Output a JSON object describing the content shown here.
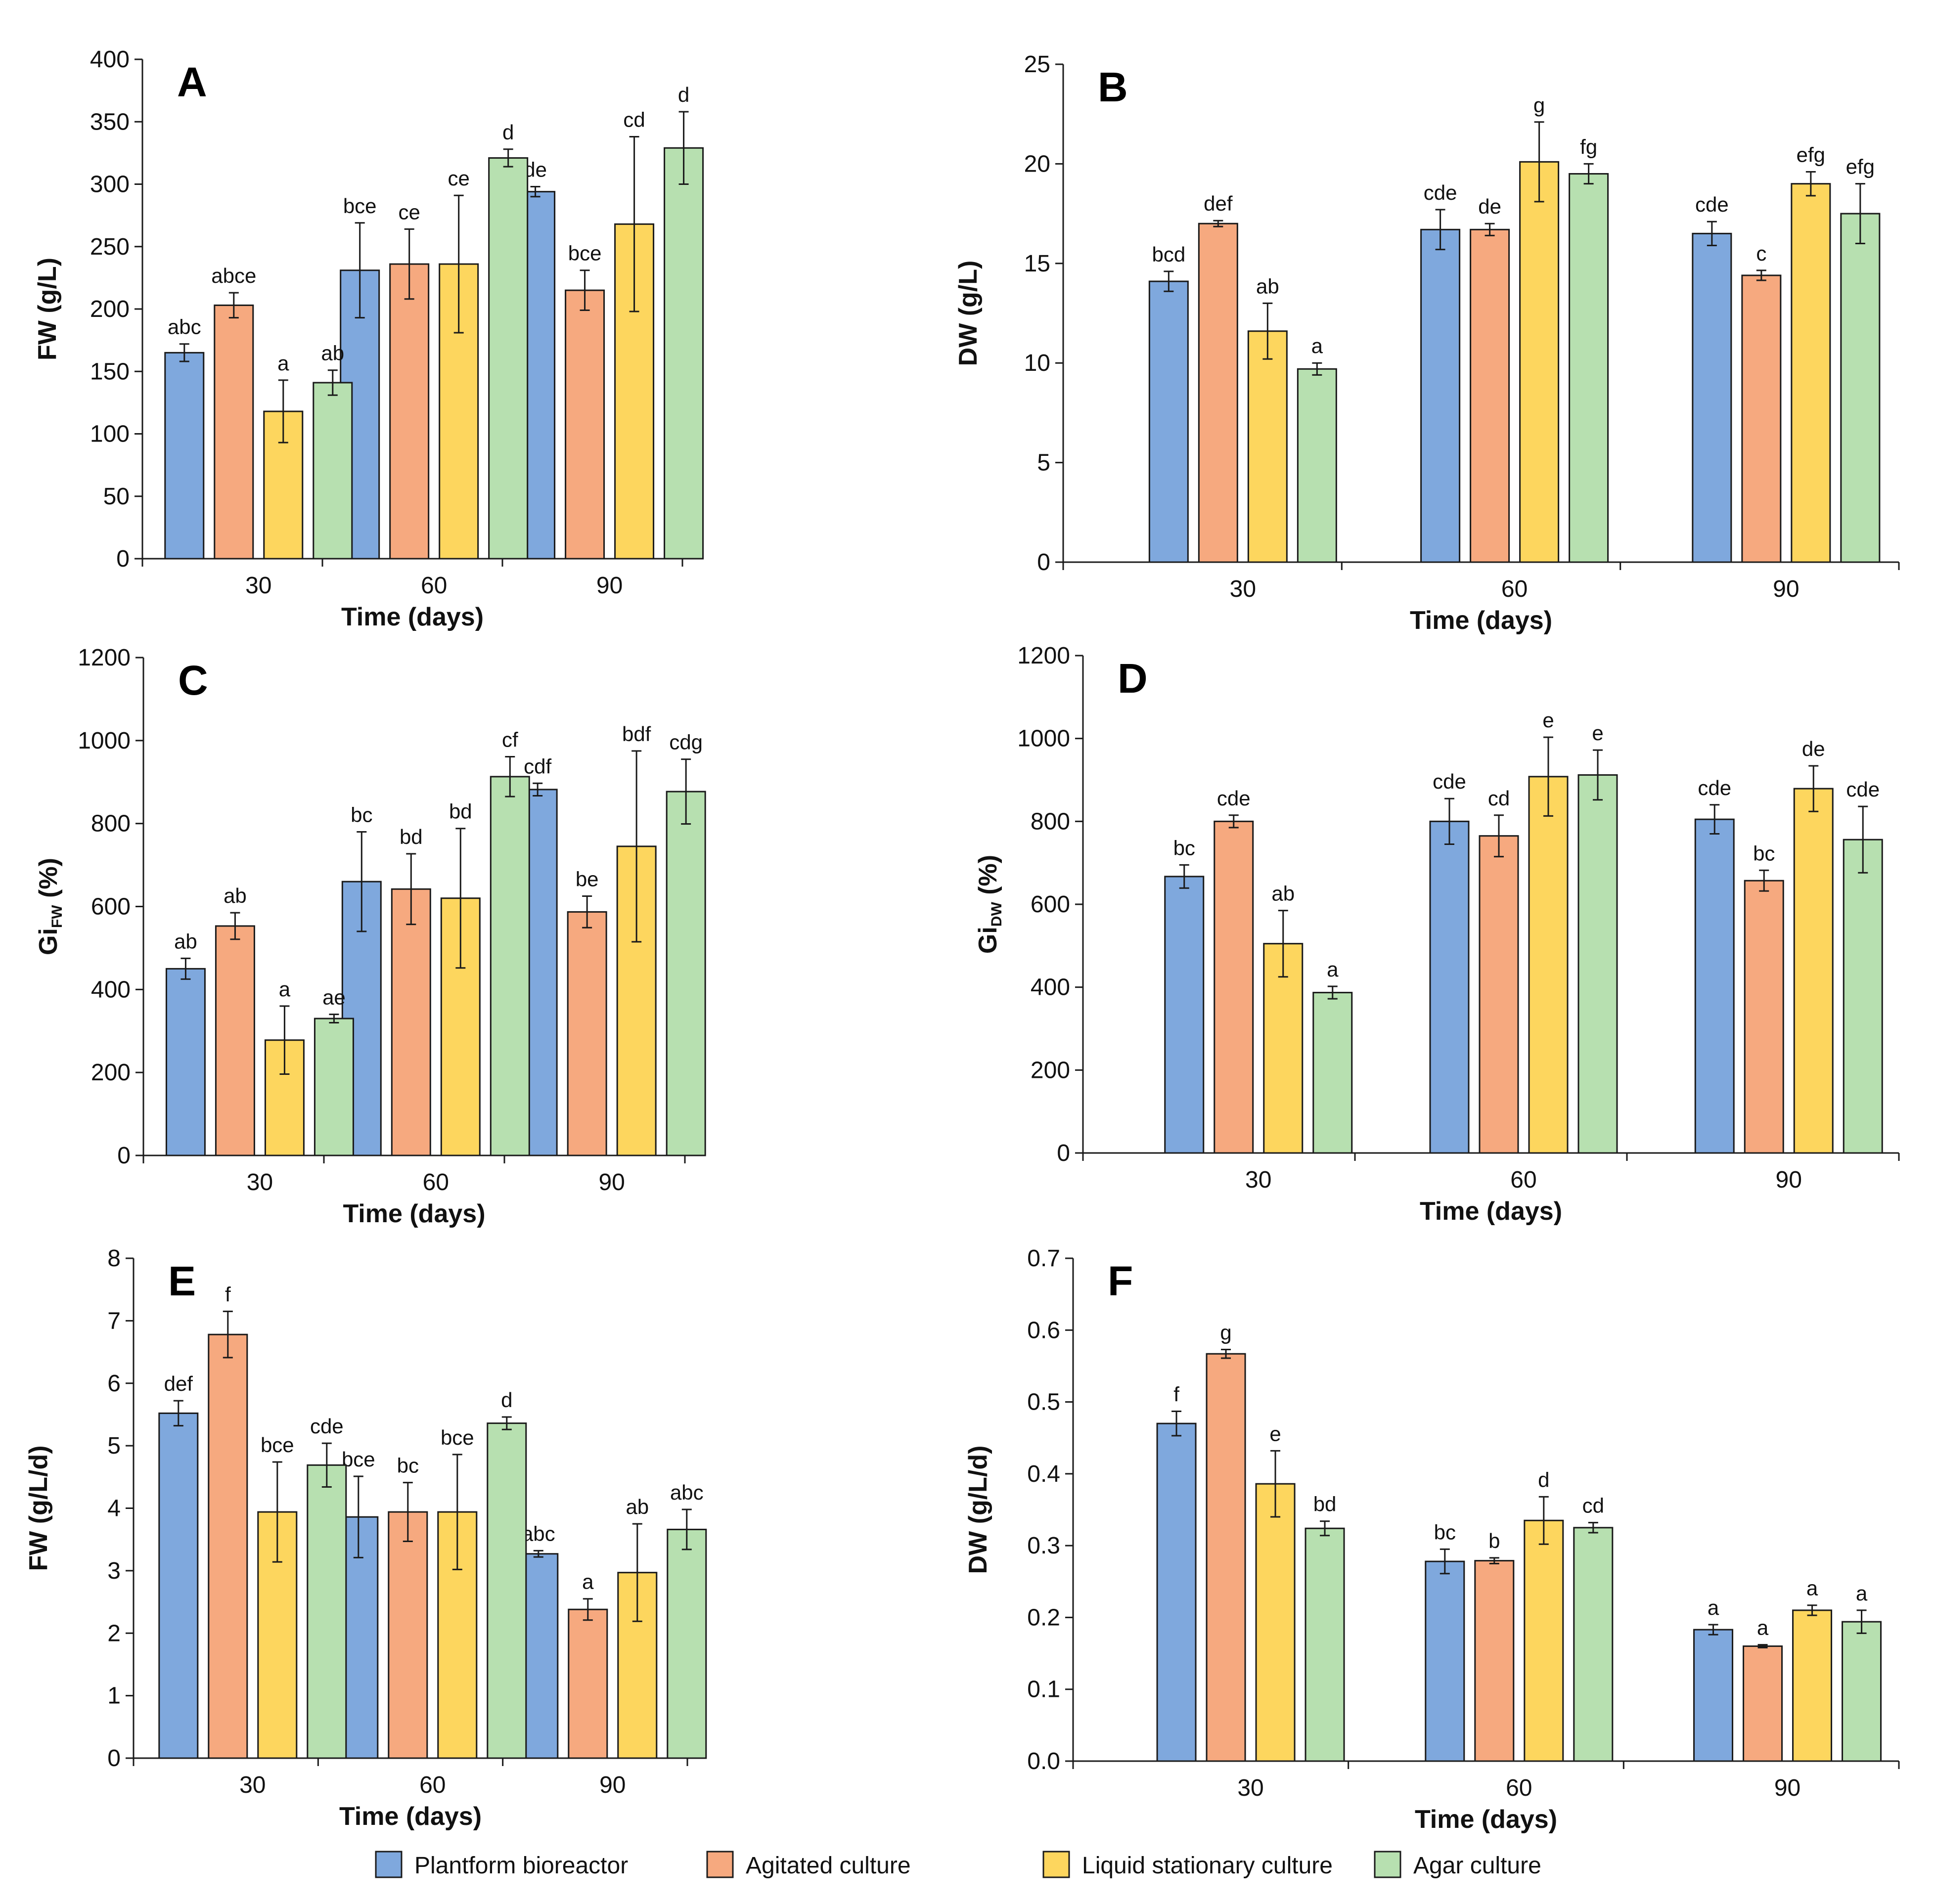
{
  "chart_data": [
    {
      "type": "bar",
      "panel": "A",
      "categories": [
        "30",
        "60",
        "90"
      ],
      "xlabel": "Time (days)",
      "ylabel": "FW (g/L)",
      "ylim": [
        0,
        400
      ],
      "yticks": [
        "0",
        "50",
        "100",
        "150",
        "200",
        "250",
        "300",
        "350",
        "400"
      ],
      "series": [
        {
          "name": "Plantform bioreactor",
          "values": [
            165,
            231,
            294
          ],
          "errors": [
            7,
            38,
            4
          ],
          "letters": [
            "abc",
            "bce",
            "de"
          ]
        },
        {
          "name": "Agitated culture",
          "values": [
            203,
            236,
            215
          ],
          "errors": [
            10,
            28,
            16
          ],
          "letters": [
            "abce",
            "ce",
            "bce"
          ]
        },
        {
          "name": "Liquid stationary culture",
          "values": [
            118,
            236,
            268
          ],
          "errors": [
            25,
            55,
            70
          ],
          "letters": [
            "a",
            "ce",
            "cd"
          ]
        },
        {
          "name": "Agar culture",
          "values": [
            141,
            321,
            329
          ],
          "errors": [
            10,
            7,
            29
          ],
          "letters": [
            "ab",
            "d",
            "d"
          ]
        }
      ]
    },
    {
      "type": "bar",
      "panel": "B",
      "categories": [
        "30",
        "60",
        "90"
      ],
      "xlabel": "Time (days)",
      "ylabel": "DW (g/L)",
      "ylim": [
        0,
        25
      ],
      "yticks": [
        "0",
        "5",
        "10",
        "15",
        "20",
        "25"
      ],
      "series": [
        {
          "name": "Plantform bioreactor",
          "values": [
            14.1,
            16.7,
            16.5
          ],
          "errors": [
            0.5,
            1.0,
            0.6
          ],
          "letters": [
            "bcd",
            "cde",
            "cde"
          ]
        },
        {
          "name": "Agitated culture",
          "values": [
            17.0,
            16.7,
            14.4
          ],
          "errors": [
            0.15,
            0.3,
            0.25
          ],
          "letters": [
            "def",
            "de",
            "c"
          ]
        },
        {
          "name": "Liquid stationary culture",
          "values": [
            11.6,
            20.1,
            19.0
          ],
          "errors": [
            1.4,
            2.0,
            0.6
          ],
          "letters": [
            "ab",
            "g",
            "efg"
          ]
        },
        {
          "name": "Agar culture",
          "values": [
            9.7,
            19.5,
            17.5
          ],
          "errors": [
            0.3,
            0.5,
            1.5
          ],
          "letters": [
            "a",
            "fg",
            "efg"
          ]
        }
      ]
    },
    {
      "type": "bar",
      "panel": "C",
      "categories": [
        "30",
        "60",
        "90"
      ],
      "xlabel": "Time (days)",
      "ylabel": "Gi",
      "ylabel_sub": "FW",
      "ylabel_suffix": " (%)",
      "ylim": [
        0,
        1200
      ],
      "yticks": [
        "0",
        "200",
        "400",
        "600",
        "800",
        "1000",
        "1200"
      ],
      "series": [
        {
          "name": "Plantform bioreactor",
          "values": [
            450,
            660,
            882
          ],
          "errors": [
            25,
            120,
            15
          ],
          "letters": [
            "ab",
            "bc",
            "cdf"
          ]
        },
        {
          "name": "Agitated culture",
          "values": [
            553,
            642,
            587
          ],
          "errors": [
            32,
            85,
            38
          ],
          "letters": [
            "ab",
            "bd",
            "be"
          ]
        },
        {
          "name": "Liquid stationary culture",
          "values": [
            278,
            620,
            745
          ],
          "errors": [
            82,
            168,
            230
          ],
          "letters": [
            "a",
            "bd",
            "bdf"
          ]
        },
        {
          "name": "Agar culture",
          "values": [
            330,
            913,
            877
          ],
          "errors": [
            10,
            48,
            78
          ],
          "letters": [
            "ae",
            "cf",
            "cdg"
          ]
        }
      ]
    },
    {
      "type": "bar",
      "panel": "D",
      "categories": [
        "30",
        "60",
        "90"
      ],
      "xlabel": "Time (days)",
      "ylabel": "Gi",
      "ylabel_sub": "DW",
      "ylabel_suffix": " (%)",
      "ylim": [
        0,
        1200
      ],
      "yticks": [
        "0",
        "200",
        "400",
        "600",
        "800",
        "1000",
        "1200"
      ],
      "series": [
        {
          "name": "Plantform bioreactor",
          "values": [
            667,
            800,
            805
          ],
          "errors": [
            28,
            55,
            35
          ],
          "letters": [
            "bc",
            "cde",
            "cde"
          ]
        },
        {
          "name": "Agitated culture",
          "values": [
            800,
            765,
            657
          ],
          "errors": [
            15,
            50,
            25
          ],
          "letters": [
            "cde",
            "cd",
            "bc"
          ]
        },
        {
          "name": "Liquid stationary culture",
          "values": [
            505,
            908,
            879
          ],
          "errors": [
            80,
            95,
            55
          ],
          "letters": [
            "ab",
            "e",
            "de"
          ]
        },
        {
          "name": "Agar culture",
          "values": [
            387,
            912,
            756
          ],
          "errors": [
            15,
            60,
            80
          ],
          "letters": [
            "a",
            "e",
            "cde"
          ]
        }
      ]
    },
    {
      "type": "bar",
      "panel": "E",
      "categories": [
        "30",
        "60",
        "90"
      ],
      "xlabel": "Time (days)",
      "ylabel": "FW (g/L/d)",
      "ylim": [
        0,
        8
      ],
      "yticks": [
        "0",
        "1",
        "2",
        "3",
        "4",
        "5",
        "6",
        "7",
        "8"
      ],
      "series": [
        {
          "name": "Plantform bioreactor",
          "values": [
            5.52,
            3.86,
            3.27
          ],
          "errors": [
            0.2,
            0.65,
            0.05
          ],
          "letters": [
            "def",
            "bce",
            "abc"
          ]
        },
        {
          "name": "Agitated culture",
          "values": [
            6.78,
            3.94,
            2.38
          ],
          "errors": [
            0.37,
            0.47,
            0.17
          ],
          "letters": [
            "f",
            "bc",
            "a"
          ]
        },
        {
          "name": "Liquid stationary culture",
          "values": [
            3.94,
            3.94,
            2.97
          ],
          "errors": [
            0.8,
            0.92,
            0.78
          ],
          "letters": [
            "bce",
            "bce",
            "ab"
          ]
        },
        {
          "name": "Agar culture",
          "values": [
            4.69,
            5.36,
            3.66
          ],
          "errors": [
            0.35,
            0.1,
            0.32
          ],
          "letters": [
            "cde",
            "d",
            "abc"
          ]
        }
      ]
    },
    {
      "type": "bar",
      "panel": "F",
      "categories": [
        "30",
        "60",
        "90"
      ],
      "xlabel": "Time (days)",
      "ylabel": "DW (g/L/d)",
      "ylim": [
        0,
        0.7
      ],
      "yticks": [
        "0.0",
        "0.1",
        "0.2",
        "0.3",
        "0.4",
        "0.5",
        "0.6",
        "0.7"
      ],
      "series": [
        {
          "name": "Plantform bioreactor",
          "values": [
            0.47,
            0.278,
            0.183
          ],
          "errors": [
            0.017,
            0.017,
            0.007
          ],
          "letters": [
            "f",
            "bc",
            "a"
          ]
        },
        {
          "name": "Agitated culture",
          "values": [
            0.567,
            0.279,
            0.16
          ],
          "errors": [
            0.006,
            0.004,
            0.002
          ],
          "letters": [
            "g",
            "b",
            "a"
          ]
        },
        {
          "name": "Liquid stationary culture",
          "values": [
            0.386,
            0.335,
            0.21
          ],
          "errors": [
            0.046,
            0.033,
            0.007
          ],
          "letters": [
            "e",
            "d",
            "a"
          ]
        },
        {
          "name": "Agar culture",
          "values": [
            0.324,
            0.325,
            0.194
          ],
          "errors": [
            0.01,
            0.007,
            0.016
          ],
          "letters": [
            "bd",
            "cd",
            "a"
          ]
        }
      ]
    }
  ],
  "colors": {
    "Plantform bioreactor": "#7fa8dd",
    "Agitated culture": "#f6a97f",
    "Liquid stationary culture": "#fdd65e",
    "Agar culture": "#b7e0b0",
    "axis": "#1a1a1a"
  },
  "legend": {
    "position": "bottom",
    "items": [
      "Plantform bioreactor",
      "Agitated culture",
      "Liquid stationary culture",
      "Agar culture"
    ]
  }
}
